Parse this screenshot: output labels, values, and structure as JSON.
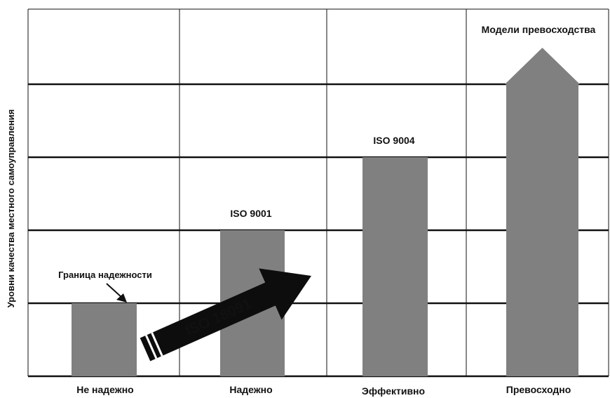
{
  "chart_data": {
    "type": "bar",
    "ylabel": "Уровни качества местного самоуправления",
    "categories": [
      "Не надежно",
      "Надежно",
      "Эффективно",
      "Превосходно"
    ],
    "values": [
      1,
      2,
      3,
      4
    ],
    "ylim": [
      0,
      4
    ],
    "grid": true,
    "bar_labels": [
      "Граница надежности",
      "ISO 9001",
      "ISO 9004",
      "Модели превосходства"
    ],
    "last_bar_shape": "arrow",
    "arrow": {
      "label": "ISO 18091",
      "from_category": "Не надежно",
      "to_category": "Надежно"
    }
  },
  "colors": {
    "bar": "#808080",
    "arrow": "#0d0d0d",
    "grid": "#111111",
    "text": "#111111"
  }
}
